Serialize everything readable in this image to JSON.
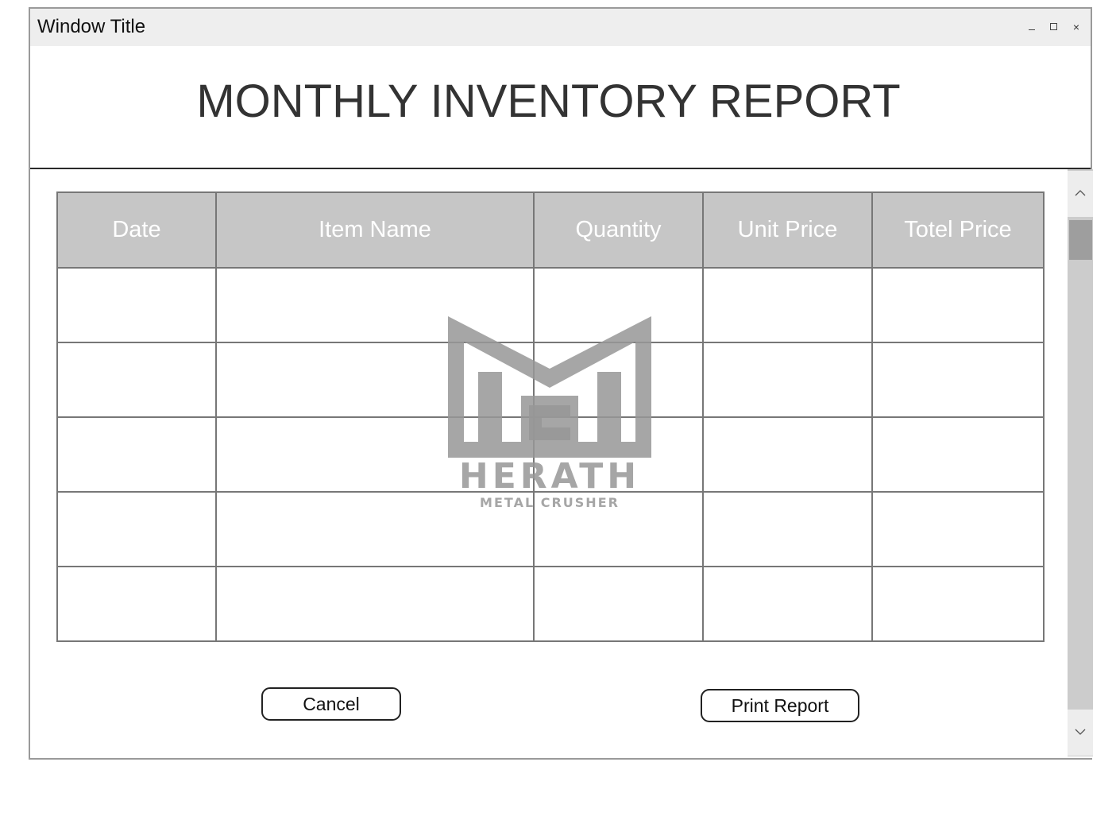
{
  "window": {
    "title": "Window Title",
    "controls": {
      "minimize_icon": "minimize-icon",
      "maximize_icon": "maximize-icon",
      "close_icon": "close-icon",
      "close_glyph": "×"
    }
  },
  "report": {
    "title": "MONTHLY INVENTORY REPORT"
  },
  "table": {
    "columns": [
      "Date",
      "Item Name",
      "Quantity",
      "Unit Price",
      "Totel Price"
    ],
    "rows": [
      [
        "",
        "",
        "",
        "",
        ""
      ],
      [
        "",
        "",
        "",
        "",
        ""
      ],
      [
        "",
        "",
        "",
        "",
        ""
      ],
      [
        "",
        "",
        "",
        "",
        ""
      ],
      [
        "",
        "",
        "",
        "",
        ""
      ]
    ]
  },
  "watermark": {
    "brand": "HERATH",
    "tagline": "METAL CRUSHER"
  },
  "buttons": {
    "cancel_label": "Cancel",
    "print_label": "Print Report"
  },
  "scrollbar": {
    "up_icon": "chevron-up-icon",
    "down_icon": "chevron-down-icon"
  },
  "colors": {
    "header_bg": "#c6c6c6",
    "titlebar_bg": "#eeeeee",
    "scroll_track": "#cccccc",
    "scroll_thumb": "#9e9e9e"
  }
}
